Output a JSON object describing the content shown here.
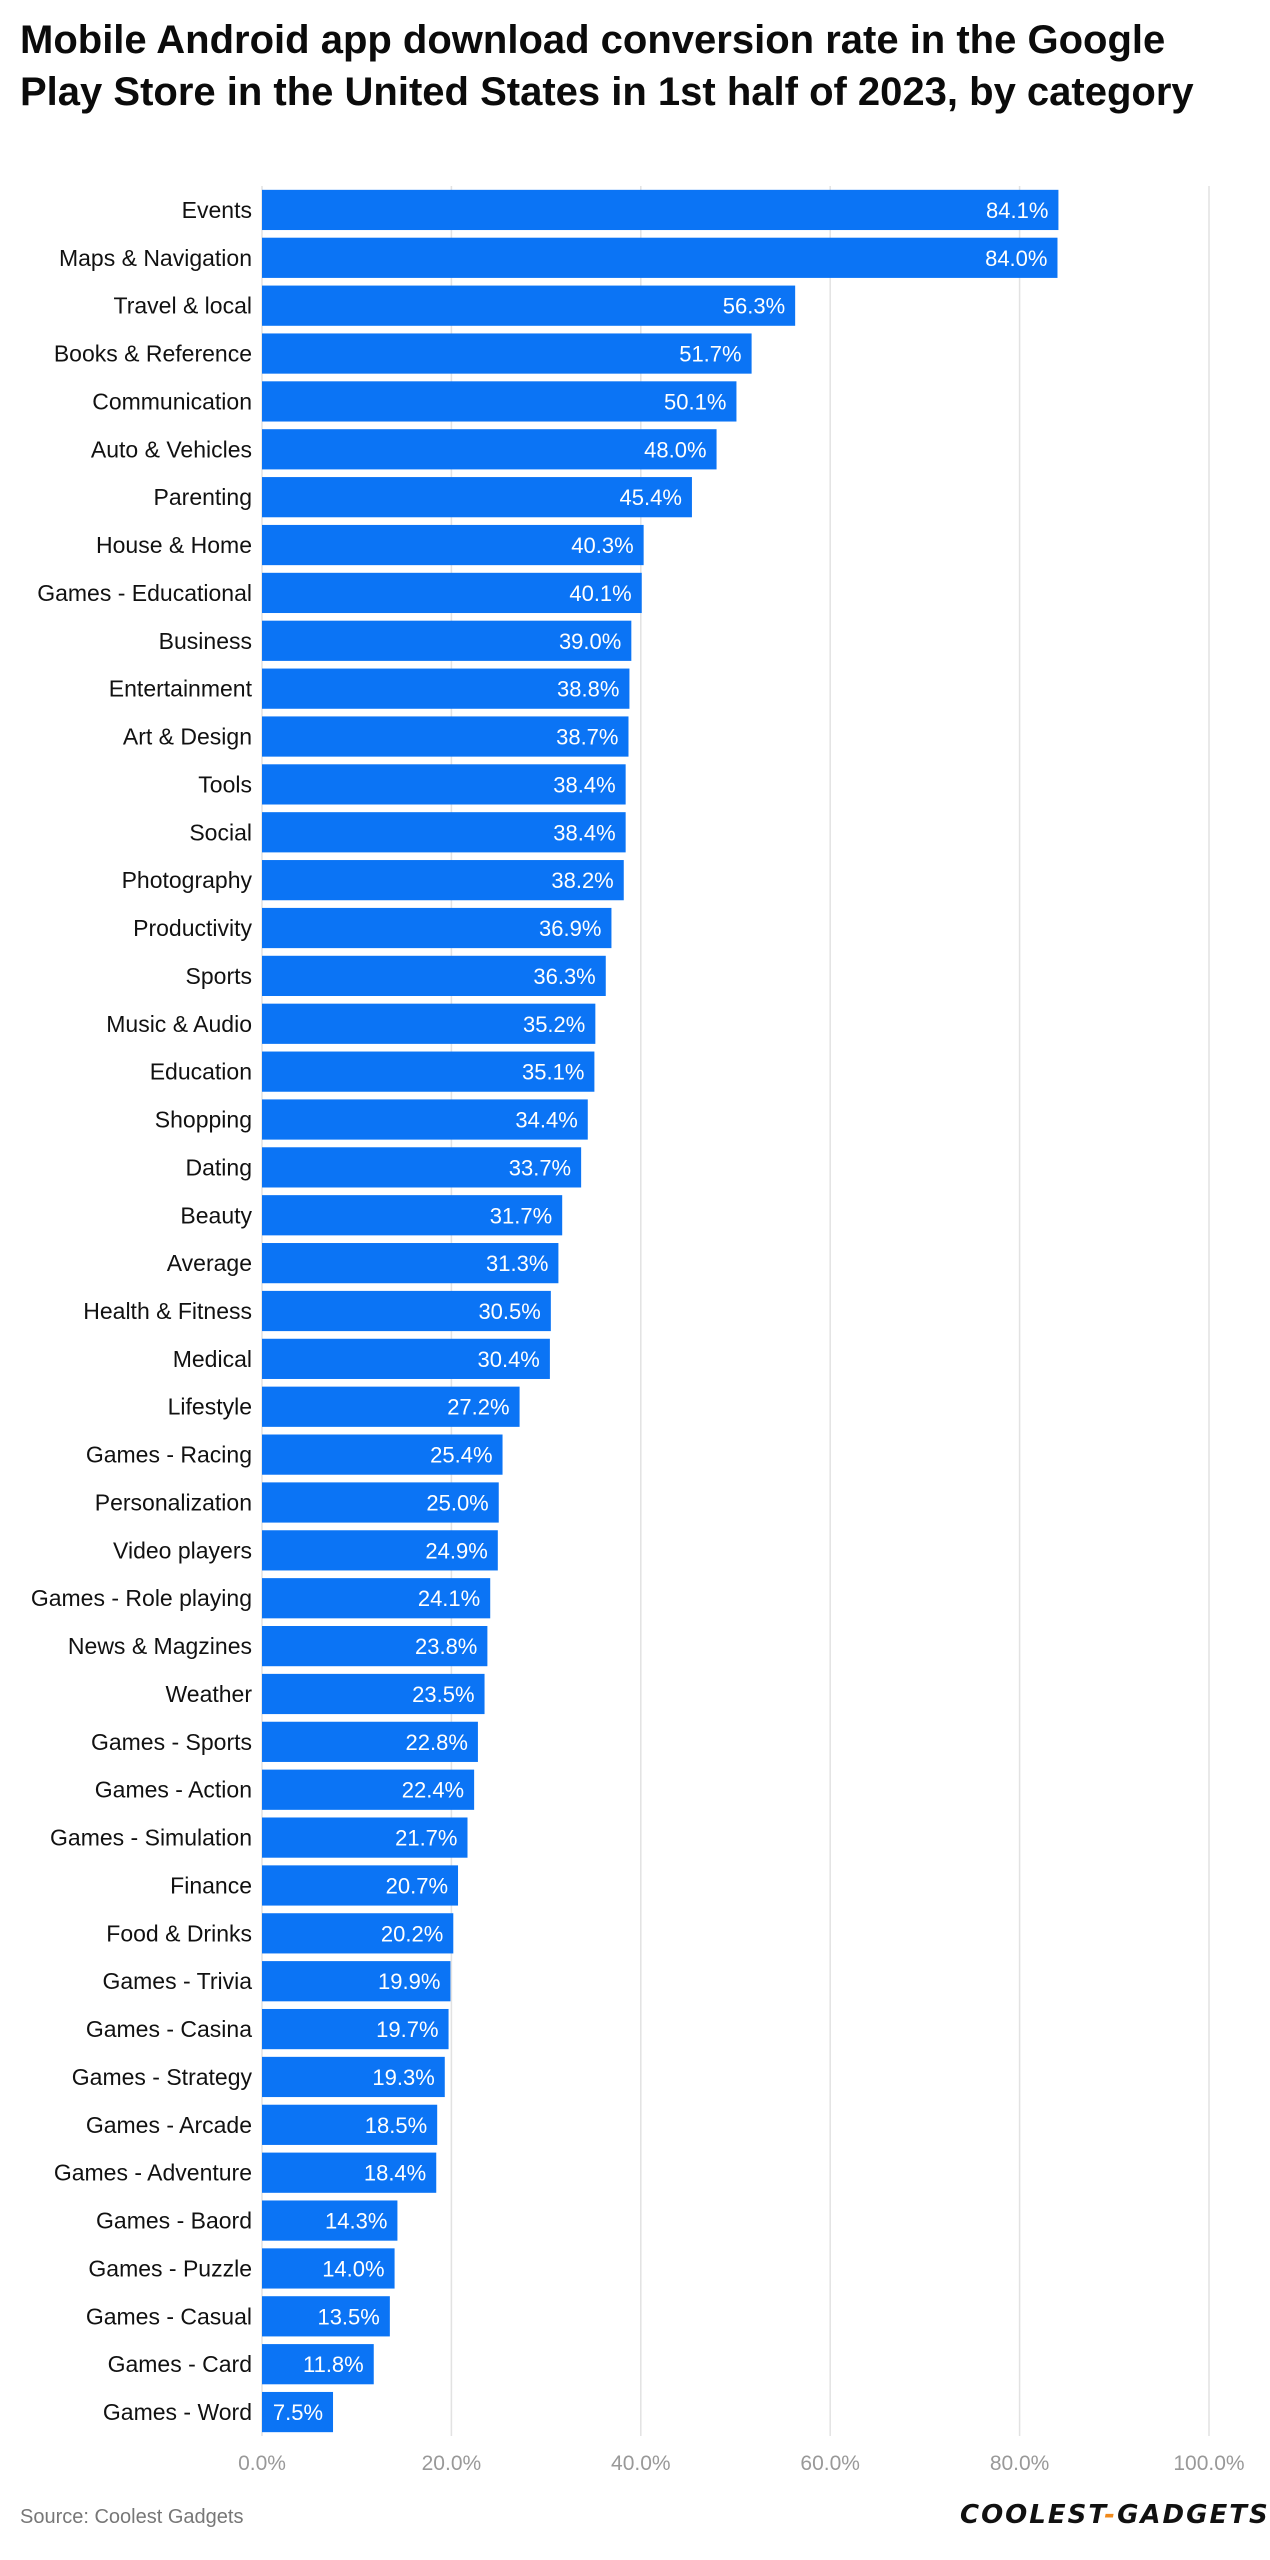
{
  "chart_data": {
    "type": "bar",
    "orientation": "horizontal",
    "title": "Mobile Android app download conversion rate in the Google Play Store in the United States in 1st half of 2023, by category",
    "xlabel": "",
    "ylabel": "",
    "categories": [
      "Events",
      "Maps & Navigation",
      "Travel & local",
      "Books & Reference",
      "Communication",
      "Auto & Vehicles",
      "Parenting",
      "House & Home",
      "Games - Educational",
      "Business",
      "Entertainment",
      "Art & Design",
      "Tools",
      "Social",
      "Photography",
      "Productivity",
      "Sports",
      "Music & Audio",
      "Education",
      "Shopping",
      "Dating",
      "Beauty",
      "Average",
      "Health & Fitness",
      "Medical",
      "Lifestyle",
      "Games - Racing",
      "Personalization",
      "Video players",
      "Games - Role playing",
      "News & Magzines",
      "Weather",
      "Games - Sports",
      "Games - Action",
      "Games - Simulation",
      "Finance",
      "Food & Drinks",
      "Games - Trivia",
      "Games - Casina",
      "Games - Strategy",
      "Games - Arcade",
      "Games - Adventure",
      "Games - Baord",
      "Games - Puzzle",
      "Games - Casual",
      "Games - Card",
      "Games - Word"
    ],
    "values": [
      84.1,
      84.0,
      56.3,
      51.7,
      50.1,
      48.0,
      45.4,
      40.3,
      40.1,
      39.0,
      38.8,
      38.7,
      38.4,
      38.4,
      38.2,
      36.9,
      36.3,
      35.2,
      35.1,
      34.4,
      33.7,
      31.7,
      31.3,
      30.5,
      30.4,
      27.2,
      25.4,
      25.0,
      24.9,
      24.1,
      23.8,
      23.5,
      22.8,
      22.4,
      21.7,
      20.7,
      20.2,
      19.9,
      19.7,
      19.3,
      18.5,
      18.4,
      14.3,
      14.0,
      13.5,
      11.8,
      7.5
    ],
    "value_labels": [
      "84.1%",
      "84.0%",
      "56.3%",
      "51.7%",
      "50.1%",
      "48.0%",
      "45.4%",
      "40.3%",
      "40.1%",
      "39.0%",
      "38.8%",
      "38.7%",
      "38.4%",
      "38.4%",
      "38.2%",
      "36.9%",
      "36.3%",
      "35.2%",
      "35.1%",
      "34.4%",
      "33.7%",
      "31.7%",
      "31.3%",
      "30.5%",
      "30.4%",
      "27.2%",
      "25.4%",
      "25.0%",
      "24.9%",
      "24.1%",
      "23.8%",
      "23.5%",
      "22.8%",
      "22.4%",
      "21.7%",
      "20.7%",
      "20.2%",
      "19.9%",
      "19.7%",
      "19.3%",
      "18.5%",
      "18.4%",
      "14.3%",
      "14.0%",
      "13.5%",
      "11.8%",
      "7.5%"
    ],
    "xlim": [
      0,
      100
    ],
    "x_ticks": [
      0,
      20,
      40,
      60,
      80,
      100
    ],
    "x_tick_labels": [
      "0.0%",
      "20.0%",
      "40.0%",
      "60.0%",
      "80.0%",
      "100.0%"
    ],
    "grid": true,
    "legend": "none",
    "bar_color": "#0b74f5",
    "label_color": "#ffffff",
    "grid_color": "#e2e2e2",
    "tick_label_color": "#999999",
    "category_label_color": "#111111"
  },
  "source": "Source: Coolest Gadgets",
  "logo": {
    "part1": "COOLEST",
    "separator": "-",
    "part2": "GADGETS"
  }
}
